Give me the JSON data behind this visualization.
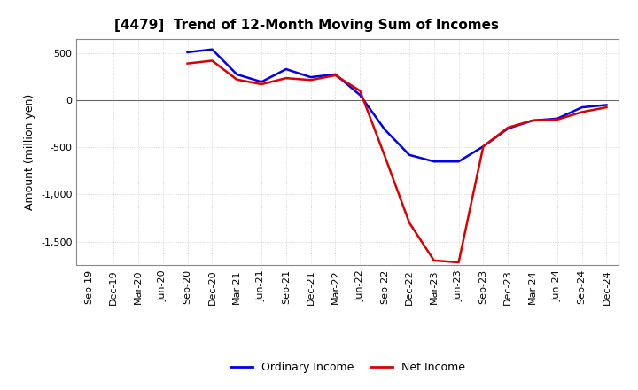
{
  "title": "[4479]  Trend of 12-Month Moving Sum of Incomes",
  "ylabel": "Amount (million yen)",
  "x_labels": [
    "Sep-19",
    "Dec-19",
    "Mar-20",
    "Jun-20",
    "Sep-20",
    "Dec-20",
    "Mar-21",
    "Jun-21",
    "Sep-21",
    "Dec-21",
    "Mar-22",
    "Jun-22",
    "Sep-22",
    "Dec-22",
    "Mar-23",
    "Jun-23",
    "Sep-23",
    "Dec-23",
    "Mar-24",
    "Jun-24",
    "Sep-24",
    "Dec-24"
  ],
  "ordinary_income": [
    null,
    null,
    null,
    null,
    510,
    540,
    275,
    195,
    330,
    245,
    275,
    55,
    -310,
    -580,
    -650,
    -650,
    -490,
    -300,
    -215,
    -195,
    -75,
    -50
  ],
  "net_income": [
    null,
    null,
    null,
    null,
    390,
    420,
    220,
    170,
    235,
    215,
    265,
    100,
    -590,
    -1300,
    -1700,
    -1720,
    -490,
    -290,
    -215,
    -205,
    -125,
    -75
  ],
  "ordinary_color": "#0000ee",
  "net_color": "#dd0000",
  "ylim": [
    -1750,
    650
  ],
  "yticks": [
    -1500,
    -1000,
    -500,
    0,
    500
  ],
  "background_color": "#ffffff",
  "plot_bg_color": "#ffffff",
  "grid_color": "#bbbbbb",
  "spine_color": "#888888",
  "title_fontsize": 11,
  "axis_fontsize": 9,
  "tick_fontsize": 8,
  "legend_fontsize": 9,
  "line_width": 1.8
}
